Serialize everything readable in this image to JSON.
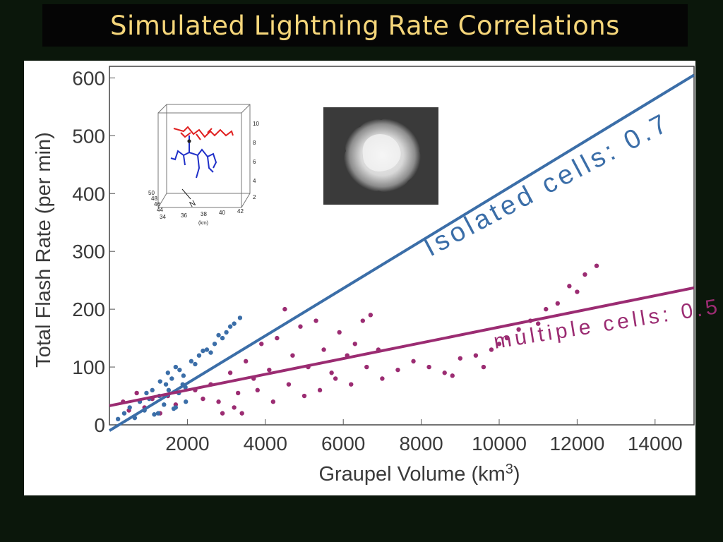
{
  "slide": {
    "title": "Simulated Lightning Rate Correlations"
  },
  "colors": {
    "background": "#0b170b",
    "title_text": "#f5d67a",
    "isolated": "#3b6ea8",
    "multiple": "#9b2c72"
  },
  "chart_data": {
    "type": "scatter",
    "xlabel_prefix": "Graupel Volume (km",
    "xlabel_sup": "3",
    "xlabel_suffix": ")",
    "ylabel": "Total Flash Rate (per min)",
    "xlim": [
      0,
      15000
    ],
    "ylim": [
      0,
      620
    ],
    "x_ticks": [
      2000,
      4000,
      6000,
      8000,
      10000,
      12000,
      14000
    ],
    "y_ticks": [
      0,
      100,
      200,
      300,
      400,
      500,
      600
    ],
    "series": [
      {
        "name": "isolated cells",
        "annotation": "Isolated cells: 0.7",
        "color": "#3b6ea8",
        "trendline": {
          "x": [
            0,
            15000
          ],
          "y": [
            -10,
            605
          ]
        },
        "points": [
          [
            220,
            10
          ],
          [
            380,
            20
          ],
          [
            520,
            30
          ],
          [
            650,
            12
          ],
          [
            780,
            40
          ],
          [
            900,
            25
          ],
          [
            1020,
            45
          ],
          [
            1150,
            18
          ],
          [
            1280,
            50
          ],
          [
            1400,
            35
          ],
          [
            1520,
            60
          ],
          [
            1650,
            28
          ],
          [
            1780,
            55
          ],
          [
            1880,
            70
          ],
          [
            1960,
            40
          ],
          [
            1300,
            75
          ],
          [
            1500,
            90
          ],
          [
            1700,
            100
          ],
          [
            1900,
            85
          ],
          [
            2100,
            110
          ],
          [
            2300,
            120
          ],
          [
            2500,
            130
          ],
          [
            2700,
            140
          ],
          [
            2900,
            150
          ],
          [
            3000,
            160
          ],
          [
            3200,
            175
          ],
          [
            3350,
            185
          ],
          [
            2600,
            125
          ],
          [
            2800,
            155
          ],
          [
            3100,
            170
          ],
          [
            2200,
            105
          ],
          [
            2400,
            128
          ],
          [
            1100,
            60
          ],
          [
            1600,
            80
          ],
          [
            1800,
            95
          ],
          [
            1950,
            65
          ],
          [
            1700,
            30
          ],
          [
            1450,
            70
          ],
          [
            1250,
            20
          ],
          [
            950,
            55
          ]
        ]
      },
      {
        "name": "multiple cells",
        "annotation": "multiple cells: 0.5",
        "color": "#9b2c72",
        "trendline": {
          "x": [
            0,
            15000
          ],
          "y": [
            33,
            237
          ]
        },
        "points": [
          [
            350,
            40
          ],
          [
            500,
            25
          ],
          [
            700,
            55
          ],
          [
            900,
            30
          ],
          [
            1100,
            45
          ],
          [
            1300,
            20
          ],
          [
            1500,
            50
          ],
          [
            1700,
            35
          ],
          [
            2200,
            60
          ],
          [
            2400,
            45
          ],
          [
            2600,
            70
          ],
          [
            2800,
            40
          ],
          [
            2900,
            20
          ],
          [
            3100,
            90
          ],
          [
            3300,
            55
          ],
          [
            3500,
            110
          ],
          [
            3700,
            80
          ],
          [
            3900,
            140
          ],
          [
            4100,
            95
          ],
          [
            4300,
            150
          ],
          [
            4500,
            200
          ],
          [
            4700,
            120
          ],
          [
            4900,
            170
          ],
          [
            5100,
            100
          ],
          [
            5300,
            180
          ],
          [
            5500,
            130
          ],
          [
            5700,
            90
          ],
          [
            5900,
            160
          ],
          [
            6100,
            120
          ],
          [
            6300,
            140
          ],
          [
            6500,
            180
          ],
          [
            6700,
            190
          ],
          [
            6900,
            130
          ],
          [
            3200,
            30
          ],
          [
            3400,
            20
          ],
          [
            3800,
            60
          ],
          [
            4200,
            40
          ],
          [
            4600,
            70
          ],
          [
            5000,
            50
          ],
          [
            5400,
            60
          ],
          [
            5800,
            80
          ],
          [
            6200,
            70
          ],
          [
            6600,
            100
          ],
          [
            7000,
            80
          ],
          [
            7400,
            95
          ],
          [
            7800,
            110
          ],
          [
            8200,
            100
          ],
          [
            8600,
            90
          ],
          [
            9000,
            115
          ],
          [
            9400,
            120
          ],
          [
            9800,
            130
          ],
          [
            10200,
            150
          ],
          [
            10500,
            165
          ],
          [
            10800,
            180
          ],
          [
            11200,
            200
          ],
          [
            11500,
            210
          ],
          [
            11800,
            240
          ],
          [
            12200,
            260
          ],
          [
            12500,
            275
          ],
          [
            12000,
            230
          ],
          [
            11000,
            175
          ],
          [
            10000,
            140
          ],
          [
            9600,
            100
          ],
          [
            8800,
            85
          ]
        ]
      }
    ]
  },
  "inset_3d": {
    "right_axis_ticks": [
      "10",
      "8",
      "6",
      "4",
      "2"
    ],
    "bottom_axis_ticks": [
      "34",
      "36",
      "38",
      "40",
      "42"
    ],
    "left_axis_ticks": [
      "50",
      "48",
      "46",
      "44"
    ],
    "axis_unit": "(km)",
    "north_label": "N"
  }
}
